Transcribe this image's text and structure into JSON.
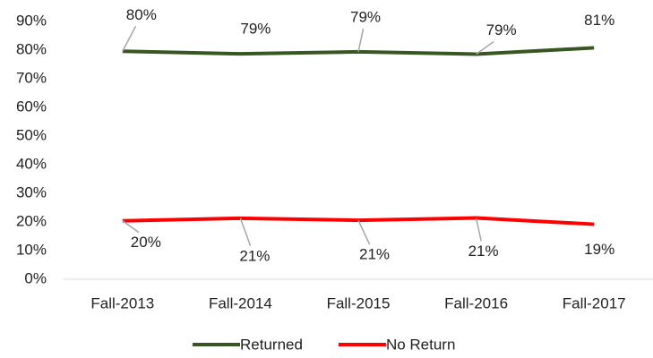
{
  "chart_data": {
    "type": "line",
    "categories": [
      "Fall-2013",
      "Fall-2014",
      "Fall-2015",
      "Fall-2016",
      "Fall-2017"
    ],
    "series": [
      {
        "name": "Returned",
        "color": "#375623",
        "values": [
          79.6,
          78.7,
          79.4,
          78.6,
          80.8
        ],
        "value_labels": [
          "80%",
          "79%",
          "79%",
          "79%",
          "81%"
        ]
      },
      {
        "name": "No Return",
        "color": "#ff0000",
        "values": [
          20.4,
          21.3,
          20.6,
          21.4,
          19.2
        ],
        "value_labels": [
          "20%",
          "21%",
          "21%",
          "21%",
          "19%"
        ]
      }
    ],
    "ylim": [
      0,
      90
    ],
    "yticks": [
      {
        "value": 0,
        "label": "0%"
      },
      {
        "value": 10,
        "label": "10%"
      },
      {
        "value": 20,
        "label": "20%"
      },
      {
        "value": 30,
        "label": "30%"
      },
      {
        "value": 40,
        "label": "40%"
      },
      {
        "value": 50,
        "label": "50%"
      },
      {
        "value": 60,
        "label": "60%"
      },
      {
        "value": 70,
        "label": "70%"
      },
      {
        "value": 80,
        "label": "80%"
      },
      {
        "value": 90,
        "label": "90%"
      }
    ],
    "grid": false,
    "legend": "bottom"
  }
}
